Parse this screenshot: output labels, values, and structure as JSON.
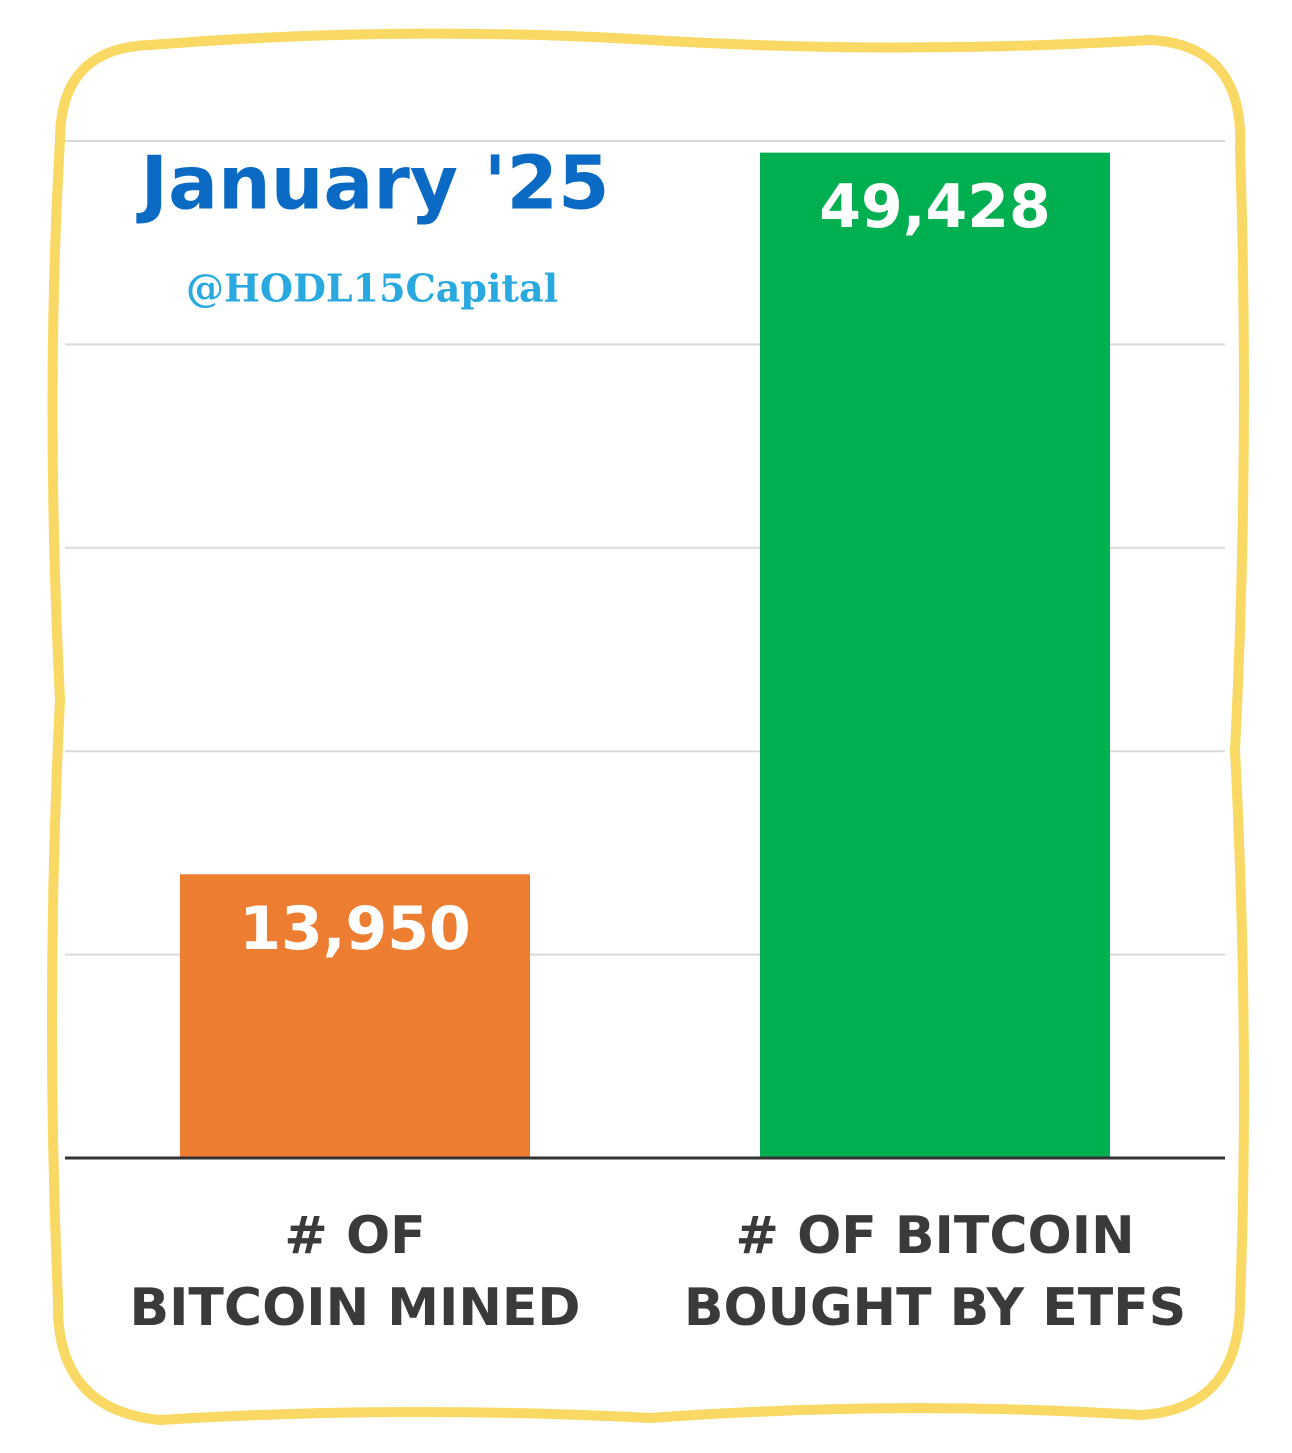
{
  "chart_data": {
    "type": "bar",
    "title": "January '25",
    "subtitle": "@HODL15Capital",
    "categories": [
      "# OF\nBITCOIN MINED",
      "# OF BITCOIN\nBOUGHT BY ETFS"
    ],
    "values": [
      13950,
      49428
    ],
    "value_labels": [
      "13,950",
      "49,428"
    ],
    "colors": [
      "#ed7d31",
      "#00b050"
    ],
    "ylim": [
      0,
      50000
    ],
    "yticks": [
      0,
      10000,
      20000,
      30000,
      40000,
      50000
    ],
    "grid": true
  }
}
